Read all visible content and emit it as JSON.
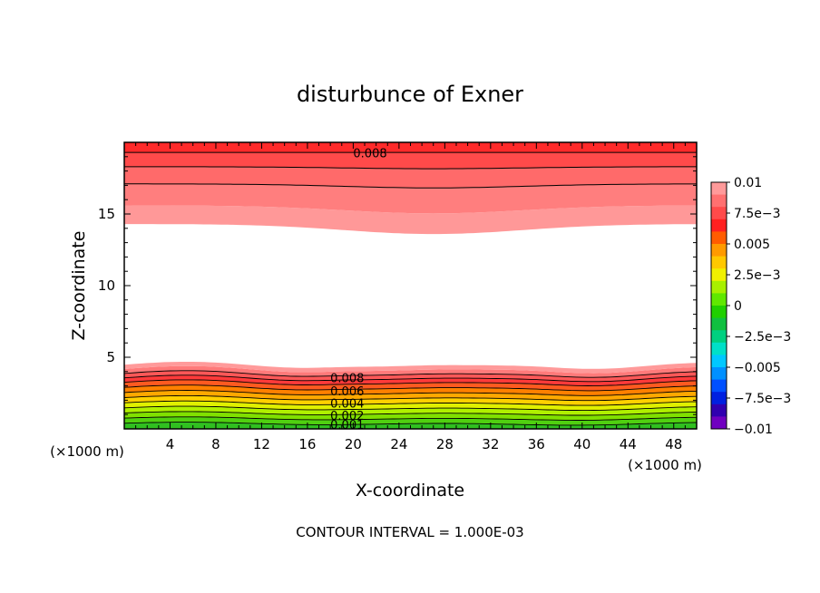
{
  "chart_data": {
    "type": "contour",
    "title": "disturbunce of Exner",
    "xlabel": "X-coordinate",
    "ylabel": "Z-coordinate",
    "x_unit_left": "(×1000 m)",
    "x_unit_right": "(×1000 m)",
    "xlim": [
      0,
      50
    ],
    "ylim": [
      0,
      20
    ],
    "xticks": [
      4,
      8,
      12,
      16,
      20,
      24,
      28,
      32,
      36,
      40,
      44,
      48
    ],
    "yticks": [
      5,
      10,
      15
    ],
    "contour_interval_text": "CONTOUR INTERVAL = 1.000E-03",
    "contour_interval": 0.001,
    "contour_labels": [
      {
        "text": "0.008",
        "x": 20,
        "z": 19.2
      },
      {
        "text": "0.008",
        "x": 18,
        "z": 3.5
      },
      {
        "text": "0.006",
        "x": 18,
        "z": 2.6
      },
      {
        "text": "0.004",
        "x": 18,
        "z": 1.75
      },
      {
        "text": "0.002",
        "x": 18,
        "z": 0.9
      },
      {
        "text": "0.001",
        "x": 18,
        "z": 0.25
      }
    ],
    "colorbar": {
      "labels": [
        "0.01",
        "7.5e−3",
        "0.005",
        "2.5e−3",
        "0",
        "−2.5e−3",
        "−0.005",
        "−7.5e−3",
        "−0.01"
      ],
      "colors_top_to_bottom": [
        "#ff9a9a",
        "#ff7070",
        "#ff4a4a",
        "#ff2020",
        "#ff5c00",
        "#ff9a00",
        "#ffc800",
        "#f0f000",
        "#a8f000",
        "#60e800",
        "#20d000",
        "#10c040",
        "#00d080",
        "#00e0c8",
        "#00c8ff",
        "#0090ff",
        "#0050ff",
        "#0020e0",
        "#3000b0",
        "#7000c0"
      ]
    },
    "bands": [
      {
        "value": 0.0095,
        "color": "#ff2a2a"
      },
      {
        "value": 0.0085,
        "color": "#ff4a4a"
      },
      {
        "value": 0.0075,
        "color": "#ff6a6a"
      },
      {
        "value": 0.0065,
        "color": "#ff7e7e"
      },
      {
        "value": 0.0055,
        "color": "#ff9898"
      }
    ]
  }
}
